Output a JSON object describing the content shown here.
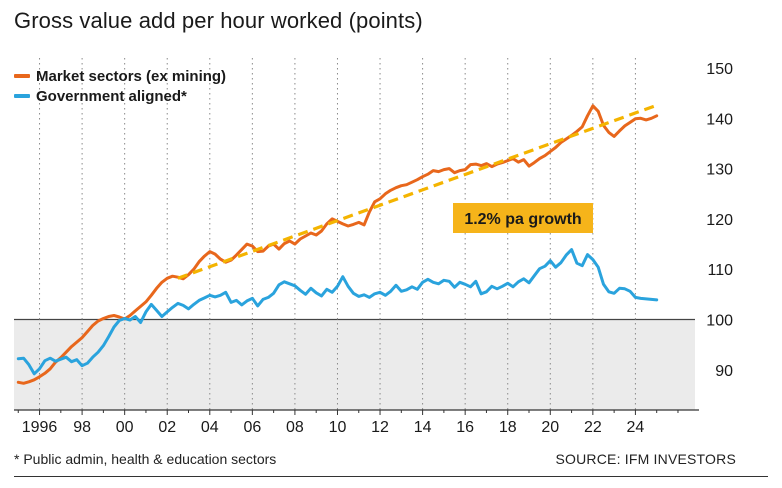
{
  "title": "Gross value add per hour worked (points)",
  "footnote": "* Public admin, health & education sectors",
  "source": "SOURCE: IFM INVESTORS",
  "annotation": "1.2% pa growth",
  "colors": {
    "market": "#e8671c",
    "government": "#2aa3dd",
    "trend": "#f4b400",
    "annotation_bg": "#f6b41a",
    "shade": "#ebebeb"
  },
  "chart_data": {
    "type": "line",
    "title": "Gross value add per hour worked (points)",
    "xlabel": "",
    "ylabel": "",
    "x_ticks": [
      "1996",
      "98",
      "00",
      "02",
      "04",
      "06",
      "08",
      "10",
      "12",
      "14",
      "16",
      "18",
      "20",
      "22",
      "24"
    ],
    "x_tick_values": [
      1996,
      1998,
      2000,
      2002,
      2004,
      2006,
      2008,
      2010,
      2012,
      2014,
      2016,
      2018,
      2020,
      2022,
      2024
    ],
    "xlim": [
      1994.8,
      2026.8
    ],
    "y_ticks": [
      90,
      100,
      110,
      120,
      130,
      140,
      150
    ],
    "ylim": [
      82,
      152
    ],
    "shaded_below": 100,
    "grid": "vertical dotted",
    "legend_position": "top-left",
    "series": [
      {
        "name": "Market sectors (ex mining)",
        "x": [
          1995.0,
          1995.25,
          1995.5,
          1995.75,
          1996.0,
          1996.25,
          1996.5,
          1996.75,
          1997.0,
          1997.25,
          1997.5,
          1997.75,
          1998.0,
          1998.25,
          1998.5,
          1998.75,
          1999.0,
          1999.25,
          1999.5,
          1999.75,
          2000.0,
          2000.25,
          2000.5,
          2000.75,
          2001.0,
          2001.25,
          2001.5,
          2001.75,
          2002.0,
          2002.25,
          2002.5,
          2002.75,
          2003.0,
          2003.25,
          2003.5,
          2003.75,
          2004.0,
          2004.25,
          2004.5,
          2004.75,
          2005.0,
          2005.25,
          2005.5,
          2005.75,
          2006.0,
          2006.25,
          2006.5,
          2006.75,
          2007.0,
          2007.25,
          2007.5,
          2007.75,
          2008.0,
          2008.25,
          2008.5,
          2008.75,
          2009.0,
          2009.25,
          2009.5,
          2009.75,
          2010.0,
          2010.25,
          2010.5,
          2010.75,
          2011.0,
          2011.25,
          2011.5,
          2011.75,
          2012.0,
          2012.25,
          2012.5,
          2012.75,
          2013.0,
          2013.25,
          2013.5,
          2013.75,
          2014.0,
          2014.25,
          2014.5,
          2014.75,
          2015.0,
          2015.25,
          2015.5,
          2015.75,
          2016.0,
          2016.25,
          2016.5,
          2016.75,
          2017.0,
          2017.25,
          2017.5,
          2017.75,
          2018.0,
          2018.25,
          2018.5,
          2018.75,
          2019.0,
          2019.25,
          2019.5,
          2019.75,
          2020.0,
          2020.25,
          2020.5,
          2020.75,
          2021.0,
          2021.25,
          2021.5,
          2021.75,
          2022.0,
          2022.25,
          2022.5,
          2022.75,
          2023.0,
          2023.25,
          2023.5,
          2023.75,
          2024.0,
          2024.25,
          2024.5,
          2024.75,
          2025.0
        ],
        "values": [
          87.5,
          87.3,
          87.6,
          88.0,
          88.6,
          89.3,
          90.2,
          91.5,
          92.4,
          93.5,
          94.6,
          95.5,
          96.4,
          97.6,
          98.8,
          99.7,
          100.2,
          100.6,
          100.8,
          100.5,
          100.1,
          100.8,
          101.7,
          102.6,
          103.5,
          104.8,
          106.2,
          107.4,
          108.2,
          108.6,
          108.4,
          108.1,
          108.9,
          110.0,
          111.5,
          112.6,
          113.5,
          113.0,
          112.0,
          111.4,
          111.8,
          112.8,
          113.9,
          115.0,
          114.6,
          113.5,
          113.6,
          114.6,
          115.0,
          114.0,
          115.1,
          115.6,
          115.0,
          116.0,
          116.6,
          117.2,
          116.8,
          117.6,
          119.0,
          120.0,
          119.5,
          119.0,
          118.6,
          118.9,
          119.3,
          118.8,
          121.4,
          123.4,
          124.0,
          125.0,
          125.7,
          126.2,
          126.6,
          126.8,
          127.3,
          127.8,
          128.4,
          128.9,
          129.6,
          129.4,
          129.8,
          130.0,
          129.2,
          129.6,
          129.8,
          130.8,
          130.9,
          130.6,
          131.0,
          130.4,
          130.9,
          131.2,
          131.6,
          132.0,
          131.3,
          131.8,
          130.5,
          131.2,
          132.0,
          132.6,
          133.4,
          134.2,
          135.2,
          135.9,
          136.6,
          137.4,
          138.3,
          140.5,
          142.5,
          141.4,
          138.6,
          137.2,
          136.4,
          137.5,
          138.5,
          139.2,
          139.9,
          140.0,
          139.7,
          140.0,
          140.5
        ],
        "color": "#e8671c"
      },
      {
        "name": "Government aligned*",
        "x": [
          1995.0,
          1995.25,
          1995.5,
          1995.75,
          1996.0,
          1996.25,
          1996.5,
          1996.75,
          1997.0,
          1997.25,
          1997.5,
          1997.75,
          1998.0,
          1998.25,
          1998.5,
          1998.75,
          1999.0,
          1999.25,
          1999.5,
          1999.75,
          2000.0,
          2000.25,
          2000.5,
          2000.75,
          2001.0,
          2001.25,
          2001.5,
          2001.75,
          2002.0,
          2002.25,
          2002.5,
          2002.75,
          2003.0,
          2003.25,
          2003.5,
          2003.75,
          2004.0,
          2004.25,
          2004.5,
          2004.75,
          2005.0,
          2005.25,
          2005.5,
          2005.75,
          2006.0,
          2006.25,
          2006.5,
          2006.75,
          2007.0,
          2007.25,
          2007.5,
          2007.75,
          2008.0,
          2008.25,
          2008.5,
          2008.75,
          2009.0,
          2009.25,
          2009.5,
          2009.75,
          2010.0,
          2010.25,
          2010.5,
          2010.75,
          2011.0,
          2011.25,
          2011.5,
          2011.75,
          2012.0,
          2012.25,
          2012.5,
          2012.75,
          2013.0,
          2013.25,
          2013.5,
          2013.75,
          2014.0,
          2014.25,
          2014.5,
          2014.75,
          2015.0,
          2015.25,
          2015.5,
          2015.75,
          2016.0,
          2016.25,
          2016.5,
          2016.75,
          2017.0,
          2017.25,
          2017.5,
          2017.75,
          2018.0,
          2018.25,
          2018.5,
          2018.75,
          2019.0,
          2019.25,
          2019.5,
          2019.75,
          2020.0,
          2020.25,
          2020.5,
          2020.75,
          2021.0,
          2021.25,
          2021.5,
          2021.75,
          2022.0,
          2022.25,
          2022.5,
          2022.75,
          2023.0,
          2023.25,
          2023.5,
          2023.75,
          2024.0,
          2024.25,
          2024.5,
          2024.75,
          2025.0
        ],
        "values": [
          92.2,
          92.3,
          91.0,
          89.2,
          90.2,
          91.8,
          92.3,
          91.7,
          92.1,
          92.5,
          91.6,
          92.0,
          90.8,
          91.3,
          92.5,
          93.5,
          94.8,
          96.6,
          98.5,
          99.8,
          100.2,
          99.9,
          100.6,
          99.4,
          101.5,
          103.0,
          101.8,
          100.6,
          101.5,
          102.4,
          103.2,
          102.8,
          102.1,
          103.0,
          103.8,
          104.3,
          104.8,
          104.5,
          104.8,
          105.4,
          103.4,
          103.8,
          102.9,
          103.7,
          104.2,
          102.7,
          104.0,
          104.4,
          105.2,
          106.9,
          107.5,
          107.1,
          106.7,
          105.8,
          105.0,
          106.2,
          105.3,
          104.7,
          106.0,
          105.4,
          106.6,
          108.5,
          106.6,
          105.2,
          104.6,
          104.9,
          104.4,
          105.1,
          105.4,
          104.8,
          105.6,
          106.8,
          105.6,
          105.9,
          106.5,
          106.0,
          107.4,
          108.0,
          107.4,
          107.1,
          107.8,
          107.6,
          106.4,
          107.4,
          107.0,
          106.5,
          107.6,
          105.1,
          105.5,
          106.6,
          106.1,
          106.6,
          107.2,
          106.5,
          107.5,
          108.1,
          107.3,
          108.7,
          110.1,
          110.6,
          111.7,
          110.4,
          111.3,
          112.8,
          113.9,
          111.2,
          110.7,
          112.9,
          111.9,
          110.4,
          107.0,
          105.5,
          105.2,
          106.2,
          106.1,
          105.6,
          104.4,
          104.2,
          104.1,
          104.0,
          103.9
        ],
        "color": "#2aa3dd"
      }
    ],
    "trend_line": {
      "label": "1.2% pa growth",
      "x": [
        2002.5,
        2025.0
      ],
      "values": [
        108.2,
        142.6
      ]
    },
    "legend": [
      "Market sectors (ex mining)",
      "Government aligned*"
    ]
  }
}
